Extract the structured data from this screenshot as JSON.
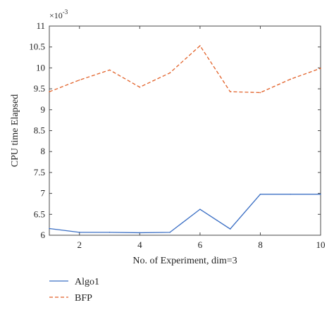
{
  "chart_data": {
    "type": "line",
    "xlabel": "No. of Experiment, dim=3",
    "ylabel": "CPU time Elapsed",
    "y_exponent_label": "×10",
    "y_exponent_power": "-3",
    "xlim": [
      1,
      10
    ],
    "ylim": [
      6,
      11
    ],
    "x_ticks": [
      2,
      4,
      6,
      8,
      10
    ],
    "x_tick_labels": [
      "2",
      "4",
      "6",
      "8",
      "10"
    ],
    "y_ticks": [
      6,
      6.5,
      7,
      7.5,
      8,
      8.5,
      9,
      9.5,
      10,
      10.5,
      11
    ],
    "y_tick_labels": [
      "6",
      "6.5",
      "7",
      "7.5",
      "8",
      "8.5",
      "9",
      "9.5",
      "10",
      "10.5",
      "11"
    ],
    "grid": false,
    "legend_position": "below",
    "x": [
      1,
      2,
      3,
      4,
      5,
      6,
      7,
      8,
      9,
      10
    ],
    "series": [
      {
        "name": "Algo1",
        "style": "solid",
        "color": "#3b6fc4",
        "values": [
          6.16,
          6.07,
          6.07,
          6.06,
          6.07,
          6.62,
          6.15,
          6.98,
          6.98,
          6.98
        ]
      },
      {
        "name": "BFP",
        "style": "dashed",
        "color": "#e2622a",
        "values": [
          9.43,
          9.71,
          9.95,
          9.54,
          9.88,
          10.53,
          9.43,
          9.41,
          9.73,
          9.99
        ]
      }
    ]
  }
}
